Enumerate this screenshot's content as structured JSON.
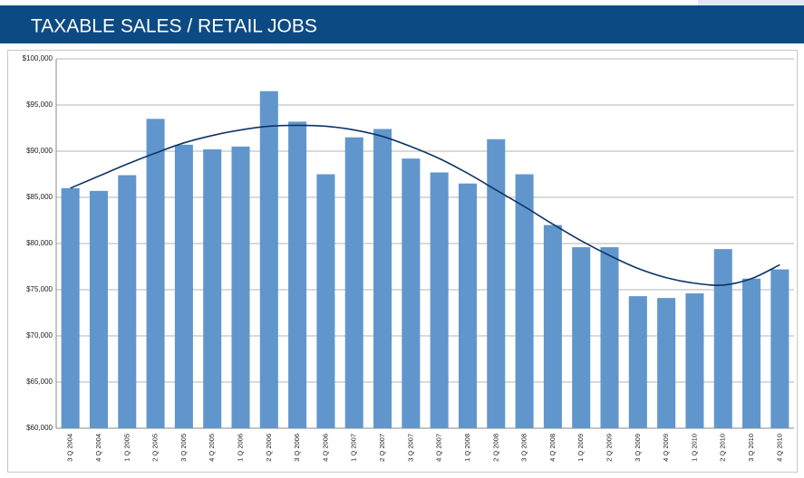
{
  "chart_data": {
    "type": "bar",
    "title": "TAXABLE SALES / RETAIL JOBS",
    "categories": [
      "3 Q 2004",
      "4 Q 2004",
      "1 Q 2005",
      "2 Q 2005",
      "3 Q 2005",
      "4 Q 2005",
      "1 Q 2006",
      "2 Q 2006",
      "3 Q 2006",
      "4 Q 2006",
      "1 Q 2007",
      "2 Q 2007",
      "3 Q 2007",
      "4 Q 2007",
      "1 Q 2008",
      "2 Q 2008",
      "3 Q 2008",
      "4 Q 2008",
      "1 Q 2009",
      "2 Q 2009",
      "3 Q 2009",
      "4 Q 2009",
      "1 Q 2010",
      "2 Q 2010",
      "3 Q 2010",
      "4 Q 2010"
    ],
    "values": [
      86000,
      85700,
      87400,
      93500,
      90700,
      90200,
      90500,
      96500,
      93200,
      87500,
      91500,
      92400,
      89200,
      87700,
      86500,
      91300,
      87500,
      82000,
      79600,
      79600,
      74300,
      74100,
      74600,
      79400,
      76200,
      77200
    ],
    "color": "#6196cc",
    "trend": {
      "color": "#0d3466",
      "values": [
        86000,
        87300,
        88600,
        89800,
        90900,
        91700,
        92300,
        92700,
        92800,
        92700,
        92300,
        91600,
        90500,
        89200,
        87600,
        85800,
        84000,
        82100,
        80300,
        78700,
        77300,
        76300,
        75700,
        75500,
        76200,
        77700
      ]
    },
    "ylim": [
      60000,
      100000
    ],
    "yticks": [
      {
        "value": 60000,
        "label": "$60,000"
      },
      {
        "value": 65000,
        "label": "$65,000"
      },
      {
        "value": 70000,
        "label": "$70,000"
      },
      {
        "value": 75000,
        "label": "$75,000"
      },
      {
        "value": 80000,
        "label": "$80,000"
      },
      {
        "value": 85000,
        "label": "$85,000"
      },
      {
        "value": 90000,
        "label": "$90,000"
      },
      {
        "value": 95000,
        "label": "$95,000"
      },
      {
        "value": 100000,
        "label": "$100,000"
      }
    ],
    "grid": true
  }
}
